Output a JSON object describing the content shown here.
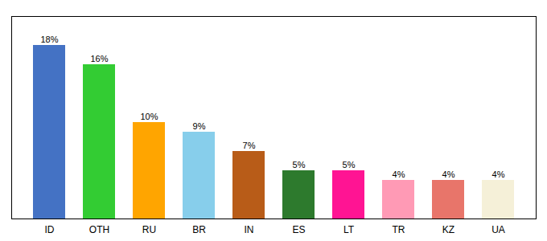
{
  "chart_data": {
    "type": "bar",
    "categories": [
      "ID",
      "OTH",
      "RU",
      "BR",
      "IN",
      "ES",
      "LT",
      "TR",
      "KZ",
      "UA"
    ],
    "values": [
      18,
      16,
      10,
      9,
      7,
      5,
      5,
      4,
      4,
      4
    ],
    "value_labels": [
      "18%",
      "16%",
      "10%",
      "9%",
      "7%",
      "5%",
      "5%",
      "4%",
      "4%",
      "4%"
    ],
    "colors": [
      "#4472c4",
      "#33cc33",
      "#ffa500",
      "#87ceeb",
      "#b85c18",
      "#2d7a2d",
      "#ff1493",
      "#ff9ab5",
      "#e8756a",
      "#f5f0d8"
    ],
    "ylim": [
      0,
      21
    ],
    "data_labels": true,
    "tick_labels": "x",
    "grid": false
  }
}
